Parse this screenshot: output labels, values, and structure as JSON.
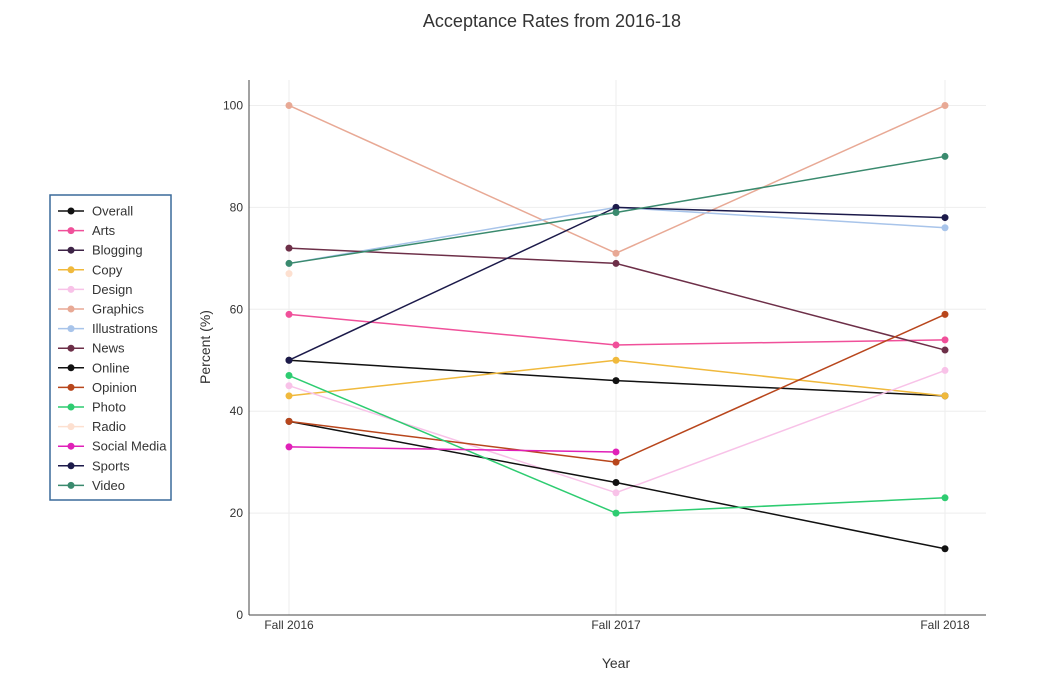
{
  "chart_data": {
    "type": "line",
    "title": "Acceptance Rates from 2016-18",
    "xlabel": "Year",
    "ylabel": "Percent (%)",
    "categories": [
      "Fall 2016",
      "Fall 2017",
      "Fall 2018"
    ],
    "ylim": [
      0,
      105
    ],
    "yticks": [
      0,
      20,
      40,
      60,
      80,
      100
    ],
    "grid": true,
    "legend_position": "left",
    "series": [
      {
        "name": "Overall",
        "color": "#111111",
        "values": [
          50,
          46,
          43
        ]
      },
      {
        "name": "Arts",
        "color": "#f0509a",
        "values": [
          59,
          53,
          54
        ]
      },
      {
        "name": "Blogging",
        "color": "#3d2346",
        "values": [
          null,
          null,
          null
        ]
      },
      {
        "name": "Copy",
        "color": "#f0b93c",
        "values": [
          43,
          50,
          43
        ]
      },
      {
        "name": "Design",
        "color": "#f8c2e8",
        "values": [
          45,
          24,
          48
        ]
      },
      {
        "name": "Graphics",
        "color": "#e8a995",
        "values": [
          100,
          71,
          100
        ]
      },
      {
        "name": "Illustrations",
        "color": "#a8c4ea",
        "values": [
          69,
          80,
          76
        ]
      },
      {
        "name": "News",
        "color": "#6d2f48",
        "values": [
          72,
          69,
          52
        ]
      },
      {
        "name": "Online",
        "color": "#111111",
        "values": [
          38,
          26,
          13
        ]
      },
      {
        "name": "Opinion",
        "color": "#b8461c",
        "values": [
          38,
          30,
          59
        ]
      },
      {
        "name": "Photo",
        "color": "#2ecc71",
        "values": [
          47,
          20,
          23
        ]
      },
      {
        "name": "Radio",
        "color": "#fde0d0",
        "values": [
          67,
          null,
          null
        ]
      },
      {
        "name": "Social Media",
        "color": "#e020b8",
        "values": [
          33,
          32,
          null
        ]
      },
      {
        "name": "Sports",
        "color": "#1c1a4a",
        "values": [
          50,
          80,
          78
        ]
      },
      {
        "name": "Video",
        "color": "#3a8a6e",
        "values": [
          69,
          79,
          90
        ]
      }
    ]
  }
}
